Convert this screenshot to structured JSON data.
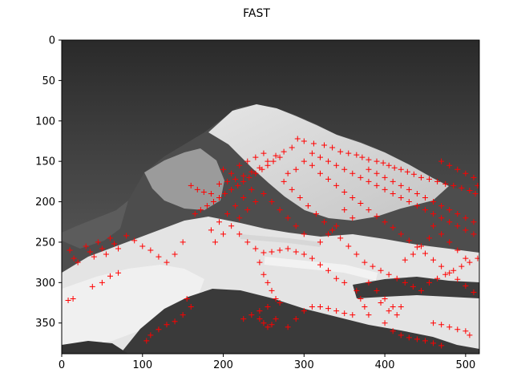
{
  "figure": {
    "title": "FAST",
    "keypoint_color": "#ff0000"
  },
  "axes": {
    "xlim": [
      0,
      517
    ],
    "ylim": [
      388,
      0
    ],
    "x_ticks": [
      {
        "value": 0,
        "label": "0"
      },
      {
        "value": 100,
        "label": "100"
      },
      {
        "value": 200,
        "label": "200"
      },
      {
        "value": 300,
        "label": "300"
      },
      {
        "value": 400,
        "label": "400"
      },
      {
        "value": 500,
        "label": "500"
      }
    ],
    "y_ticks": [
      {
        "value": 0,
        "label": "0"
      },
      {
        "value": 50,
        "label": "50"
      },
      {
        "value": 100,
        "label": "100"
      },
      {
        "value": 150,
        "label": "150"
      },
      {
        "value": 200,
        "label": "200"
      },
      {
        "value": 250,
        "label": "250"
      },
      {
        "value": 300,
        "label": "300"
      },
      {
        "value": 350,
        "label": "350"
      }
    ]
  },
  "image": {
    "content": "grayscale mountain photo with snowy glaciers under dark sky",
    "sky_top_color": "#2a2a2a",
    "sky_bottom_color": "#6a6a6a",
    "rock_color": "#4a4a4a",
    "snow_color": "#e8e8e8"
  },
  "keypoints": [
    [
      292,
      122
    ],
    [
      300,
      125
    ],
    [
      312,
      128
    ],
    [
      325,
      130
    ],
    [
      335,
      133
    ],
    [
      345,
      138
    ],
    [
      355,
      140
    ],
    [
      365,
      142
    ],
    [
      372,
      145
    ],
    [
      380,
      148
    ],
    [
      390,
      150
    ],
    [
      398,
      152
    ],
    [
      405,
      155
    ],
    [
      412,
      158
    ],
    [
      420,
      160
    ],
    [
      428,
      163
    ],
    [
      436,
      166
    ],
    [
      445,
      170
    ],
    [
      455,
      172
    ],
    [
      465,
      175
    ],
    [
      475,
      178
    ],
    [
      485,
      180
    ],
    [
      495,
      183
    ],
    [
      505,
      186
    ],
    [
      512,
      190
    ],
    [
      270,
      145
    ],
    [
      262,
      150
    ],
    [
      255,
      155
    ],
    [
      248,
      160
    ],
    [
      240,
      165
    ],
    [
      232,
      170
    ],
    [
      225,
      175
    ],
    [
      218,
      180
    ],
    [
      210,
      185
    ],
    [
      202,
      190
    ],
    [
      195,
      195
    ],
    [
      188,
      200
    ],
    [
      180,
      205
    ],
    [
      172,
      210
    ],
    [
      165,
      215
    ],
    [
      160,
      180
    ],
    [
      168,
      185
    ],
    [
      176,
      188
    ],
    [
      185,
      190
    ],
    [
      195,
      178
    ],
    [
      205,
      175
    ],
    [
      215,
      172
    ],
    [
      225,
      168
    ],
    [
      235,
      163
    ],
    [
      245,
      158
    ],
    [
      255,
      150
    ],
    [
      265,
      143
    ],
    [
      275,
      138
    ],
    [
      285,
      133
    ],
    [
      310,
      140
    ],
    [
      320,
      145
    ],
    [
      330,
      150
    ],
    [
      340,
      155
    ],
    [
      350,
      160
    ],
    [
      360,
      165
    ],
    [
      370,
      170
    ],
    [
      380,
      175
    ],
    [
      390,
      180
    ],
    [
      400,
      185
    ],
    [
      410,
      190
    ],
    [
      420,
      195
    ],
    [
      430,
      200
    ],
    [
      440,
      205
    ],
    [
      450,
      210
    ],
    [
      460,
      215
    ],
    [
      470,
      220
    ],
    [
      480,
      225
    ],
    [
      490,
      230
    ],
    [
      500,
      235
    ],
    [
      510,
      240
    ],
    [
      320,
      165
    ],
    [
      330,
      172
    ],
    [
      340,
      180
    ],
    [
      350,
      188
    ],
    [
      360,
      195
    ],
    [
      370,
      202
    ],
    [
      380,
      210
    ],
    [
      390,
      218
    ],
    [
      400,
      225
    ],
    [
      410,
      232
    ],
    [
      420,
      240
    ],
    [
      430,
      248
    ],
    [
      440,
      256
    ],
    [
      450,
      264
    ],
    [
      460,
      272
    ],
    [
      470,
      280
    ],
    [
      480,
      288
    ],
    [
      490,
      296
    ],
    [
      500,
      304
    ],
    [
      510,
      312
    ],
    [
      350,
      210
    ],
    [
      360,
      220
    ],
    [
      340,
      230
    ],
    [
      330,
      240
    ],
    [
      320,
      250
    ],
    [
      300,
      240
    ],
    [
      290,
      230
    ],
    [
      280,
      220
    ],
    [
      270,
      210
    ],
    [
      260,
      200
    ],
    [
      250,
      190
    ],
    [
      240,
      200
    ],
    [
      230,
      210
    ],
    [
      220,
      220
    ],
    [
      210,
      230
    ],
    [
      200,
      240
    ],
    [
      190,
      250
    ],
    [
      185,
      235
    ],
    [
      195,
      225
    ],
    [
      205,
      215
    ],
    [
      215,
      205
    ],
    [
      225,
      195
    ],
    [
      235,
      185
    ],
    [
      220,
      240
    ],
    [
      230,
      250
    ],
    [
      240,
      258
    ],
    [
      250,
      263
    ],
    [
      260,
      262
    ],
    [
      270,
      260
    ],
    [
      245,
      275
    ],
    [
      250,
      290
    ],
    [
      255,
      300
    ],
    [
      260,
      310
    ],
    [
      265,
      320
    ],
    [
      270,
      325
    ],
    [
      255,
      330
    ],
    [
      245,
      335
    ],
    [
      235,
      340
    ],
    [
      225,
      345
    ],
    [
      10,
      260
    ],
    [
      15,
      270
    ],
    [
      20,
      275
    ],
    [
      30,
      255
    ],
    [
      35,
      262
    ],
    [
      40,
      268
    ],
    [
      45,
      250
    ],
    [
      50,
      258
    ],
    [
      55,
      265
    ],
    [
      60,
      245
    ],
    [
      65,
      252
    ],
    [
      70,
      258
    ],
    [
      80,
      242
    ],
    [
      90,
      248
    ],
    [
      100,
      255
    ],
    [
      110,
      260
    ],
    [
      120,
      268
    ],
    [
      130,
      275
    ],
    [
      140,
      265
    ],
    [
      150,
      250
    ],
    [
      38,
      305
    ],
    [
      50,
      300
    ],
    [
      60,
      292
    ],
    [
      70,
      288
    ],
    [
      8,
      322
    ],
    [
      14,
      320
    ],
    [
      155,
      320
    ],
    [
      160,
      330
    ],
    [
      150,
      340
    ],
    [
      140,
      348
    ],
    [
      130,
      352
    ],
    [
      120,
      358
    ],
    [
      110,
      365
    ],
    [
      105,
      372
    ],
    [
      280,
      355
    ],
    [
      290,
      345
    ],
    [
      300,
      335
    ],
    [
      310,
      330
    ],
    [
      320,
      330
    ],
    [
      330,
      332
    ],
    [
      340,
      335
    ],
    [
      350,
      338
    ],
    [
      360,
      340
    ],
    [
      245,
      345
    ],
    [
      250,
      350
    ],
    [
      255,
      355
    ],
    [
      260,
      352
    ],
    [
      265,
      345
    ],
    [
      400,
      350
    ],
    [
      410,
      360
    ],
    [
      420,
      365
    ],
    [
      430,
      368
    ],
    [
      440,
      370
    ],
    [
      450,
      372
    ],
    [
      460,
      375
    ],
    [
      470,
      378
    ],
    [
      375,
      275
    ],
    [
      385,
      280
    ],
    [
      395,
      285
    ],
    [
      405,
      290
    ],
    [
      415,
      295
    ],
    [
      425,
      300
    ],
    [
      435,
      305
    ],
    [
      445,
      310
    ],
    [
      455,
      300
    ],
    [
      465,
      295
    ],
    [
      475,
      290
    ],
    [
      485,
      285
    ],
    [
      495,
      280
    ],
    [
      505,
      275
    ],
    [
      515,
      270
    ],
    [
      380,
      300
    ],
    [
      390,
      310
    ],
    [
      400,
      320
    ],
    [
      410,
      330
    ],
    [
      350,
      300
    ],
    [
      340,
      295
    ],
    [
      330,
      285
    ],
    [
      320,
      278
    ],
    [
      310,
      270
    ],
    [
      300,
      265
    ],
    [
      290,
      262
    ],
    [
      280,
      258
    ],
    [
      460,
      230
    ],
    [
      470,
      240
    ],
    [
      480,
      250
    ],
    [
      490,
      260
    ],
    [
      500,
      270
    ],
    [
      455,
      245
    ],
    [
      445,
      255
    ],
    [
      435,
      265
    ],
    [
      425,
      272
    ],
    [
      460,
      350
    ],
    [
      470,
      352
    ],
    [
      480,
      355
    ],
    [
      490,
      358
    ],
    [
      500,
      360
    ],
    [
      505,
      365
    ],
    [
      365,
      310
    ],
    [
      370,
      320
    ],
    [
      375,
      330
    ],
    [
      380,
      340
    ],
    [
      395,
      325
    ],
    [
      405,
      335
    ],
    [
      415,
      340
    ],
    [
      420,
      330
    ],
    [
      200,
      160
    ],
    [
      210,
      165
    ],
    [
      220,
      155
    ],
    [
      230,
      150
    ],
    [
      240,
      145
    ],
    [
      250,
      140
    ],
    [
      300,
      150
    ],
    [
      310,
      155
    ],
    [
      290,
      160
    ],
    [
      280,
      165
    ],
    [
      275,
      175
    ],
    [
      285,
      185
    ],
    [
      295,
      195
    ],
    [
      305,
      205
    ],
    [
      315,
      215
    ],
    [
      325,
      225
    ],
    [
      335,
      235
    ],
    [
      345,
      245
    ],
    [
      355,
      255
    ],
    [
      365,
      265
    ],
    [
      380,
      160
    ],
    [
      390,
      165
    ],
    [
      400,
      170
    ],
    [
      410,
      175
    ],
    [
      420,
      180
    ],
    [
      430,
      185
    ],
    [
      440,
      190
    ],
    [
      450,
      195
    ],
    [
      460,
      200
    ],
    [
      470,
      205
    ],
    [
      480,
      210
    ],
    [
      490,
      215
    ],
    [
      500,
      220
    ],
    [
      510,
      225
    ],
    [
      515,
      180
    ],
    [
      510,
      170
    ],
    [
      500,
      165
    ],
    [
      490,
      160
    ],
    [
      480,
      155
    ],
    [
      470,
      150
    ]
  ]
}
